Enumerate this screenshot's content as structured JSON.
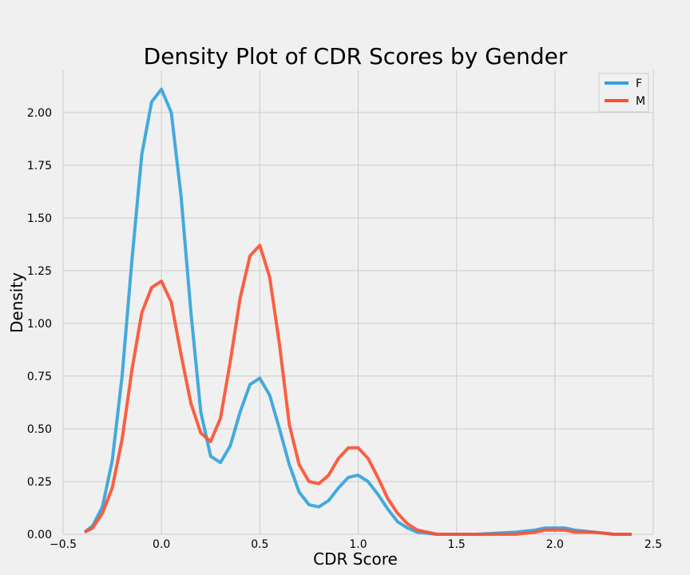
{
  "chart_data": {
    "type": "line",
    "title": "Density Plot of CDR Scores by Gender",
    "xlabel": "CDR Score",
    "ylabel": "Density",
    "xlim": [
      -0.5,
      2.5
    ],
    "ylim": [
      0,
      2.2
    ],
    "xticks": [
      "−0.5",
      "0.0",
      "0.5",
      "1.0",
      "1.5",
      "2.0",
      "2.5"
    ],
    "xtick_values": [
      -0.5,
      0.0,
      0.5,
      1.0,
      1.5,
      2.0,
      2.5
    ],
    "yticks": [
      "0.00",
      "0.25",
      "0.50",
      "0.75",
      "1.00",
      "1.25",
      "1.50",
      "1.75",
      "2.00"
    ],
    "ytick_values": [
      0,
      0.25,
      0.5,
      0.75,
      1.0,
      1.25,
      1.5,
      1.75,
      2.0
    ],
    "grid": true,
    "legend_position": "top-right",
    "series": [
      {
        "name": "F",
        "color": "#30a2da",
        "x": [
          -0.39,
          -0.35,
          -0.3,
          -0.25,
          -0.2,
          -0.15,
          -0.1,
          -0.05,
          0.0,
          0.05,
          0.1,
          0.15,
          0.2,
          0.25,
          0.3,
          0.35,
          0.4,
          0.45,
          0.5,
          0.55,
          0.6,
          0.65,
          0.7,
          0.75,
          0.8,
          0.85,
          0.9,
          0.95,
          1.0,
          1.05,
          1.1,
          1.15,
          1.2,
          1.25,
          1.3,
          1.4,
          1.6,
          1.8,
          1.9,
          1.95,
          2.0,
          2.05,
          2.1,
          2.2,
          2.3,
          2.39
        ],
        "y": [
          0.01,
          0.04,
          0.13,
          0.35,
          0.75,
          1.3,
          1.8,
          2.05,
          2.11,
          2.0,
          1.6,
          1.05,
          0.58,
          0.37,
          0.34,
          0.42,
          0.58,
          0.71,
          0.74,
          0.66,
          0.5,
          0.33,
          0.2,
          0.14,
          0.13,
          0.16,
          0.22,
          0.27,
          0.28,
          0.25,
          0.19,
          0.12,
          0.06,
          0.03,
          0.01,
          0.0,
          0.0,
          0.01,
          0.02,
          0.03,
          0.03,
          0.03,
          0.02,
          0.01,
          0.0,
          0.0
        ]
      },
      {
        "name": "M",
        "color": "#fc4f30",
        "x": [
          -0.39,
          -0.35,
          -0.3,
          -0.25,
          -0.2,
          -0.15,
          -0.1,
          -0.05,
          0.0,
          0.05,
          0.1,
          0.15,
          0.2,
          0.25,
          0.3,
          0.35,
          0.4,
          0.45,
          0.5,
          0.55,
          0.6,
          0.65,
          0.7,
          0.75,
          0.8,
          0.85,
          0.9,
          0.95,
          1.0,
          1.05,
          1.1,
          1.15,
          1.2,
          1.25,
          1.3,
          1.4,
          1.6,
          1.8,
          1.9,
          1.95,
          2.0,
          2.05,
          2.1,
          2.2,
          2.3,
          2.39
        ],
        "y": [
          0.01,
          0.03,
          0.1,
          0.22,
          0.45,
          0.78,
          1.05,
          1.17,
          1.2,
          1.1,
          0.85,
          0.62,
          0.48,
          0.44,
          0.55,
          0.82,
          1.12,
          1.32,
          1.37,
          1.22,
          0.9,
          0.52,
          0.33,
          0.25,
          0.24,
          0.28,
          0.36,
          0.41,
          0.41,
          0.36,
          0.27,
          0.17,
          0.1,
          0.05,
          0.02,
          0.0,
          0.0,
          0.0,
          0.01,
          0.02,
          0.02,
          0.02,
          0.01,
          0.01,
          0.0,
          0.0
        ]
      }
    ]
  }
}
